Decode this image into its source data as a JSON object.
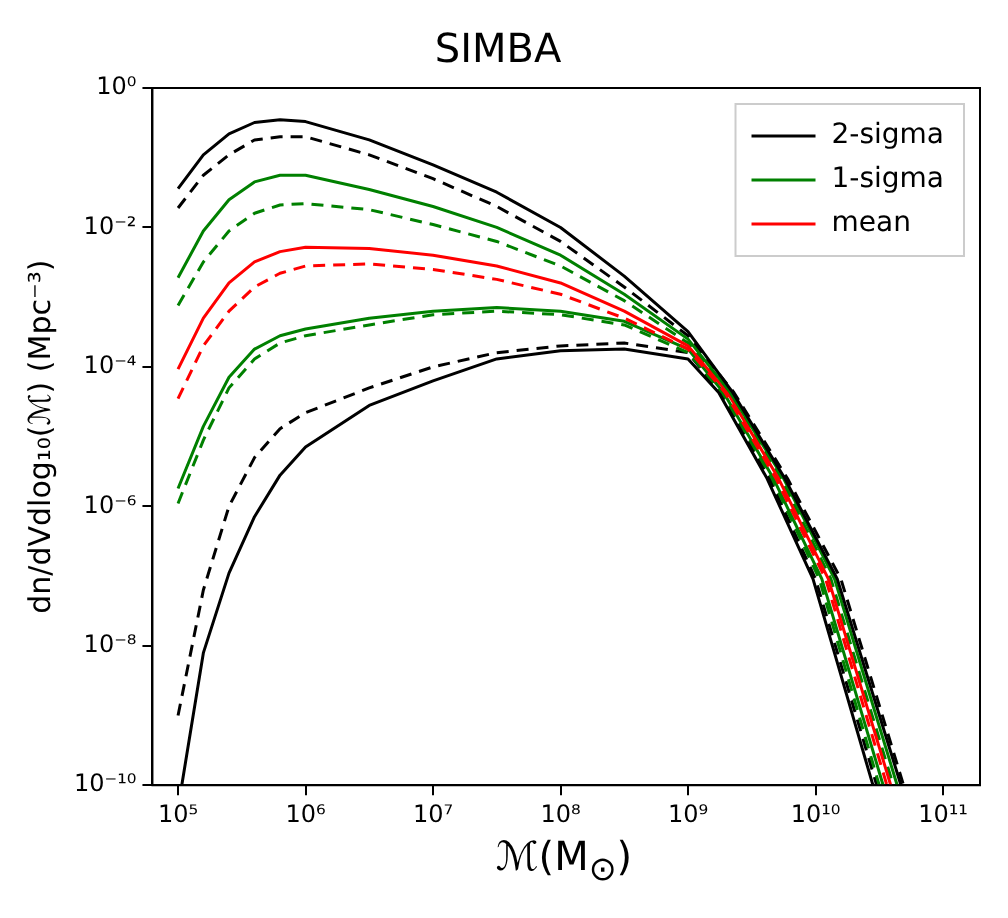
{
  "chart_data": {
    "type": "line",
    "title": "SIMBA",
    "xlabel": "ℳ(M$_{⊙}$)",
    "ylabel": "dn/dVdlog₁₀(ℳ) (Mpc⁻³)",
    "log": "xy",
    "grid": false,
    "marker": "none",
    "legend": "top right",
    "xlim": [
      63000,
      195000000000
    ],
    "ylim": [
      1e-10,
      1
    ],
    "xticks": [
      {
        "value": 100000,
        "label": "10⁵"
      },
      {
        "value": 1000000,
        "label": "10⁶"
      },
      {
        "value": 10000000,
        "label": "10⁷"
      },
      {
        "value": 100000000,
        "label": "10⁸"
      },
      {
        "value": 1000000000,
        "label": "10⁹"
      },
      {
        "value": 10000000000,
        "label": "10¹⁰"
      },
      {
        "value": 100000000000,
        "label": "10¹¹"
      }
    ],
    "yticks": [
      {
        "value": 1e-10,
        "label": "10⁻¹⁰"
      },
      {
        "value": 1e-08,
        "label": "10⁻⁸"
      },
      {
        "value": 1e-06,
        "label": "10⁻⁶"
      },
      {
        "value": 0.0001,
        "label": "10⁻⁴"
      },
      {
        "value": 0.01,
        "label": "10⁻²"
      },
      {
        "value": 1,
        "label": "10⁰"
      }
    ],
    "series": [
      {
        "name": "2-sigma",
        "color": "#000000",
        "line_style": "solid",
        "x": [
          100000,
          158000,
          251000,
          398000,
          631000,
          1000000,
          3160000,
          10000000,
          31600000,
          100000000,
          316000000,
          1000000000,
          2240000000,
          5750000000,
          14800000000,
          46800000000
        ],
        "values": [
          0.036,
          0.11,
          0.22,
          0.32,
          0.35,
          0.33,
          0.18,
          0.079,
          0.032,
          0.01,
          0.002,
          0.00032,
          4.3e-05,
          2.5e-06,
          9.1e-08,
          1e-10
        ]
      },
      {
        "name": "1-sigma",
        "color": "#008000",
        "line_style": "solid",
        "x": [
          100000,
          158000,
          251000,
          398000,
          631000,
          1000000,
          3160000,
          10000000,
          31600000,
          100000000,
          316000000,
          1000000000,
          2140000000,
          5620000000,
          14100000000,
          43700000000
        ],
        "values": [
          0.0019,
          0.0089,
          0.025,
          0.045,
          0.056,
          0.056,
          0.035,
          0.02,
          0.01,
          0.004,
          0.0011,
          0.00025,
          4.3e-05,
          2.5e-06,
          9.1e-08,
          1e-10
        ]
      },
      {
        "name": "mean",
        "color": "#ff0000",
        "line_style": "solid",
        "x": [
          100000,
          158000,
          251000,
          398000,
          631000,
          1000000,
          3160000,
          10000000,
          31600000,
          100000000,
          316000000,
          1000000000,
          2040000000,
          5130000000,
          12600000000,
          38900000000
        ],
        "values": [
          9.3e-05,
          0.0005,
          0.0016,
          0.0032,
          0.0045,
          0.0052,
          0.005,
          0.004,
          0.0028,
          0.0016,
          0.00063,
          0.0002,
          4.3e-05,
          2.5e-06,
          9.1e-08,
          1e-10
        ]
      },
      {
        "color": "#000000",
        "line_style": "dashed",
        "x": [
          100000,
          158000,
          251000,
          398000,
          631000,
          1000000,
          3160000,
          10000000,
          31600000,
          100000000,
          316000000,
          1000000000,
          2290000000,
          6030000000,
          15800000000,
          49000000000
        ],
        "values": [
          0.019,
          0.056,
          0.11,
          0.18,
          0.2,
          0.2,
          0.11,
          0.05,
          0.02,
          0.0063,
          0.0014,
          0.00028,
          4.3e-05,
          2.5e-06,
          9.1e-08,
          1e-10
        ]
      },
      {
        "color": "#008000",
        "line_style": "dashed",
        "x": [
          100000,
          158000,
          251000,
          398000,
          631000,
          1000000,
          3160000,
          10000000,
          31600000,
          100000000,
          316000000,
          1000000000,
          2090000000,
          5370000000,
          13200000000,
          40700000000
        ],
        "values": [
          0.00076,
          0.0032,
          0.0089,
          0.016,
          0.021,
          0.022,
          0.018,
          0.011,
          0.0063,
          0.0028,
          0.00089,
          0.00022,
          4.3e-05,
          2.5e-06,
          9.1e-08,
          1e-10
        ]
      },
      {
        "color": "#ff0000",
        "line_style": "dashed",
        "x": [
          100000,
          158000,
          251000,
          398000,
          631000,
          1000000,
          3160000,
          10000000,
          31600000,
          100000000,
          316000000,
          1000000000,
          1950000000,
          4900000000,
          12000000000,
          36300000000
        ],
        "values": [
          3.5e-05,
          0.0002,
          0.00063,
          0.0014,
          0.0022,
          0.0028,
          0.003,
          0.0025,
          0.0018,
          0.0011,
          0.0005,
          0.00018,
          4.3e-05,
          2.5e-06,
          9.1e-08,
          1e-10
        ]
      },
      {
        "color": "#008000",
        "line_style": "solid",
        "x": [
          100000,
          158000,
          251000,
          398000,
          631000,
          1000000,
          3160000,
          10000000,
          31600000,
          100000000,
          316000000,
          1000000000,
          1900000000,
          4680000000,
          11200000000,
          33900000000
        ],
        "values": [
          1.8e-06,
          1.4e-05,
          7.1e-05,
          0.00018,
          0.00028,
          0.00035,
          0.0005,
          0.00063,
          0.00071,
          0.00063,
          0.00045,
          0.00018,
          4.3e-05,
          2.5e-06,
          9.1e-08,
          1e-10
        ]
      },
      {
        "color": "#008000",
        "line_style": "dashed",
        "x": [
          100000,
          158000,
          251000,
          398000,
          631000,
          1000000,
          3160000,
          10000000,
          31600000,
          100000000,
          316000000,
          1000000000,
          1860000000,
          4570000000,
          10700000000,
          31600000000
        ],
        "values": [
          1.1e-06,
          8.9e-06,
          5e-05,
          0.00013,
          0.00022,
          0.00028,
          0.0004,
          0.00056,
          0.00063,
          0.00056,
          0.0004,
          0.00016,
          4.3e-05,
          2.5e-06,
          9.1e-08,
          1e-10
        ]
      },
      {
        "color": "#000000",
        "line_style": "dashed",
        "x": [
          100000,
          158000,
          251000,
          398000,
          631000,
          1000000,
          3160000,
          10000000,
          31600000,
          100000000,
          316000000,
          1000000000,
          1780000000,
          4370000000,
          10000000000,
          30200000000
        ],
        "values": [
          1e-09,
          6.3e-08,
          1e-06,
          5e-06,
          1.3e-05,
          2.2e-05,
          5e-05,
          0.0001,
          0.00016,
          0.0002,
          0.00022,
          0.00016,
          4.3e-05,
          2.5e-06,
          9.1e-08,
          1e-10
        ]
      },
      {
        "color": "#000000",
        "line_style": "solid",
        "x": [
          107000,
          158000,
          251000,
          398000,
          631000,
          1000000,
          3160000,
          10000000,
          31600000,
          100000000,
          316000000,
          1000000000,
          1740000000,
          4170000000,
          9550000000,
          28200000000
        ],
        "values": [
          1e-10,
          7.9e-09,
          1.1e-07,
          7.1e-07,
          2.8e-06,
          7.1e-06,
          2.8e-05,
          6.3e-05,
          0.00013,
          0.00017,
          0.00018,
          0.00013,
          4.3e-05,
          2.5e-06,
          9.1e-08,
          1e-10
        ]
      }
    ]
  }
}
